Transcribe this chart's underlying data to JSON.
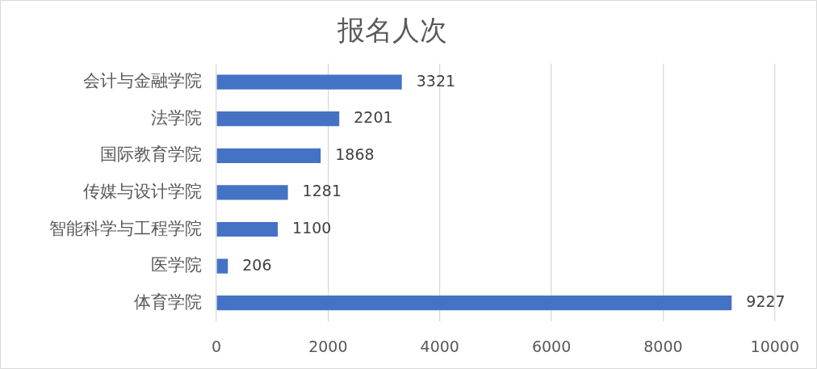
{
  "chart_data": {
    "type": "bar",
    "orientation": "horizontal",
    "title": "报名人次",
    "categories": [
      "会计与金融学院",
      "法学院",
      "国际教育学院",
      "传媒与设计学院",
      "智能科学与工程学院",
      "医学院",
      "体育学院"
    ],
    "values": [
      3321,
      2201,
      1868,
      1281,
      1100,
      206,
      9227
    ],
    "color": "#4472c4",
    "xlim": [
      0,
      10000
    ],
    "xticks": [
      0,
      2000,
      4000,
      6000,
      8000,
      10000
    ],
    "grid": "x",
    "data_labels": true
  }
}
